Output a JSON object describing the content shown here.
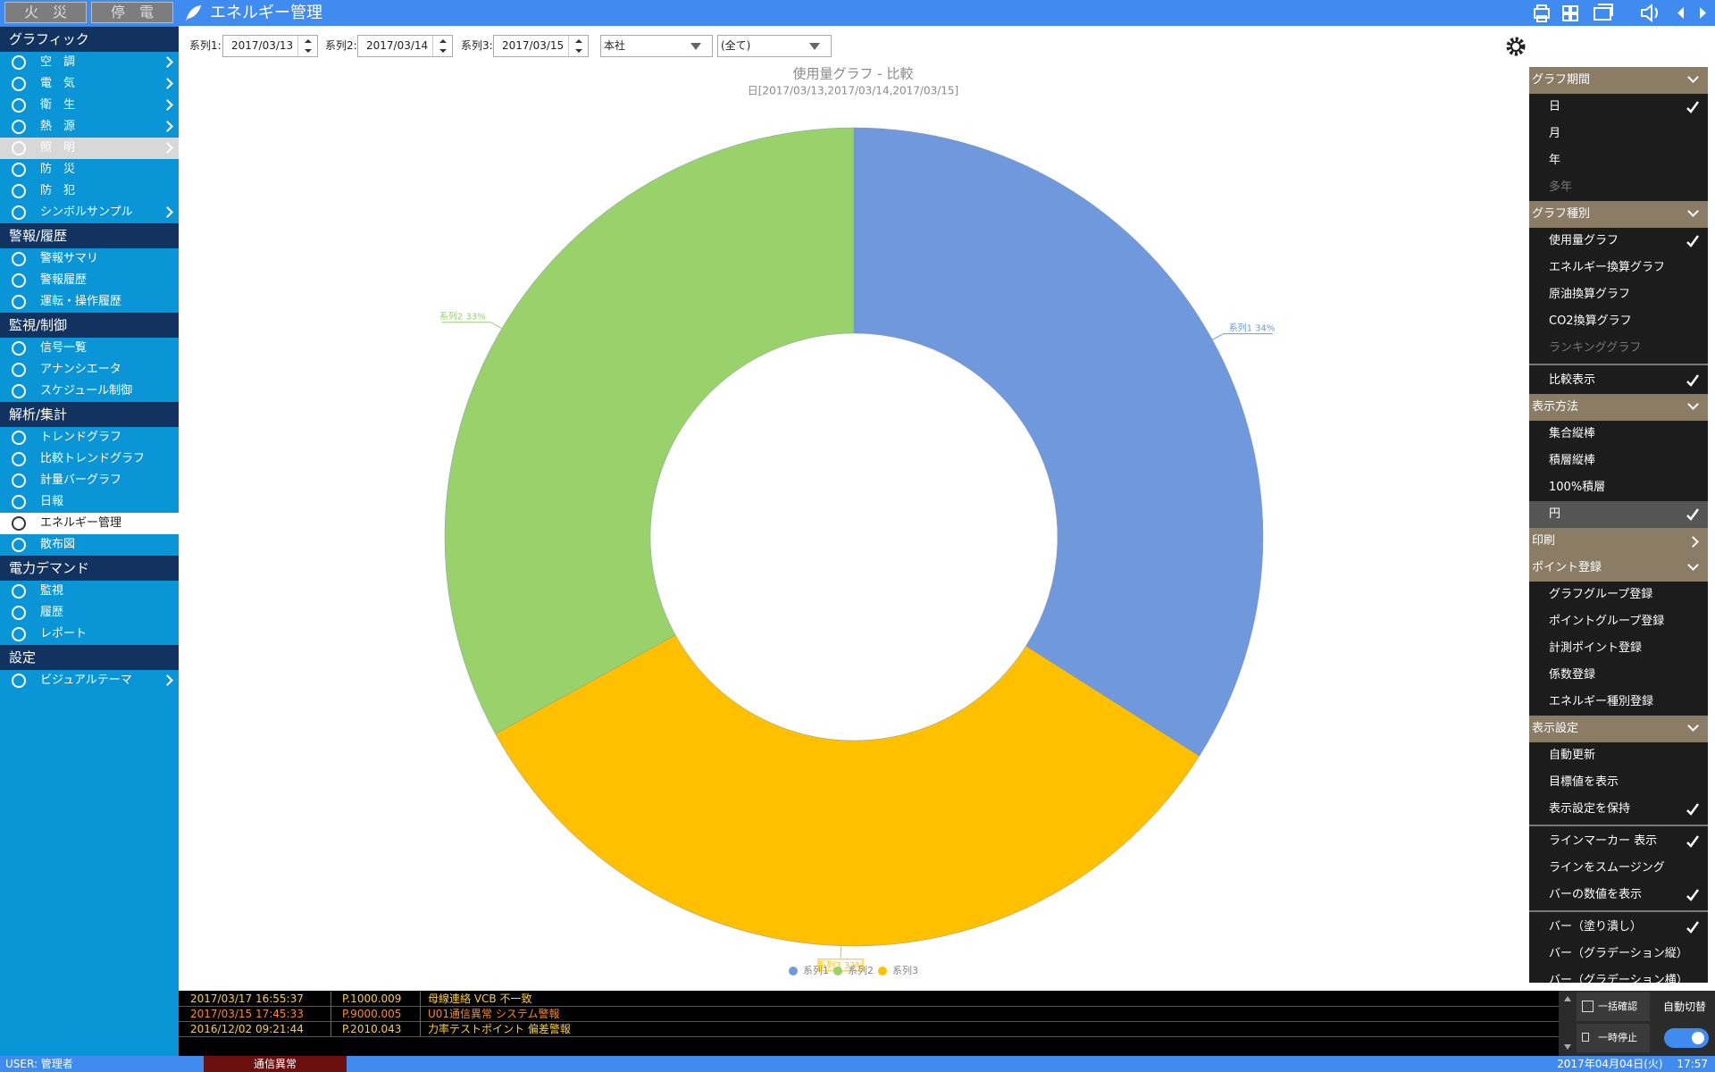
{
  "header": {
    "buttons": [
      "火　災",
      "停　電"
    ],
    "title": "エネルギー管理"
  },
  "sidebar": [
    {
      "title": "グラフィック",
      "items": [
        {
          "label": "空　調",
          "arrow": true
        },
        {
          "label": "電　気",
          "arrow": true
        },
        {
          "label": "衛　生",
          "arrow": true
        },
        {
          "label": "熱　源",
          "arrow": true
        },
        {
          "label": "照　明",
          "arrow": true,
          "highlighted": true
        },
        {
          "label": "防　災"
        },
        {
          "label": "防　犯"
        },
        {
          "label": "シンボルサンプル",
          "arrow": true
        }
      ]
    },
    {
      "title": "警報/履歴",
      "items": [
        {
          "label": "警報サマリ"
        },
        {
          "label": "警報履歴"
        },
        {
          "label": "運転・操作履歴"
        }
      ]
    },
    {
      "title": "監視/制御",
      "items": [
        {
          "label": "信号一覧"
        },
        {
          "label": "アナンシエータ"
        },
        {
          "label": "スケジュール制御"
        }
      ]
    },
    {
      "title": "解析/集計",
      "items": [
        {
          "label": "トレンドグラフ"
        },
        {
          "label": "比較トレンドグラフ"
        },
        {
          "label": "計量バーグラフ"
        },
        {
          "label": "日報"
        },
        {
          "label": "エネルギー管理",
          "selected": true
        },
        {
          "label": "散布図"
        }
      ]
    },
    {
      "title": "電力デマンド",
      "items": [
        {
          "label": "監視"
        },
        {
          "label": "履歴"
        },
        {
          "label": "レポート"
        }
      ]
    },
    {
      "title": "設定",
      "items": [
        {
          "label": "ビジュアルテーマ",
          "arrow": true
        }
      ]
    }
  ],
  "toolbar": {
    "series": [
      {
        "label": "系列1:",
        "date": "2017/03/13"
      },
      {
        "label": "系列2:",
        "date": "2017/03/14"
      },
      {
        "label": "系列3:",
        "date": "2017/03/15"
      }
    ],
    "selects": [
      "本社",
      "(全て)"
    ]
  },
  "chart_data": {
    "type": "pie",
    "title": "使用量グラフ - 比較",
    "subtitle": "日[2017/03/13,2017/03/14,2017/03/15]",
    "categories": [
      "系列1",
      "系列2",
      "系列3"
    ],
    "values": [
      34,
      33,
      33
    ],
    "value_labels": [
      "系列1 34%",
      "系列2 33%",
      "系列3 33%"
    ],
    "colors": [
      "#6f98dd",
      "#99d16b",
      "#ffc000"
    ]
  },
  "settings_panel": [
    {
      "title": "グラフ期間",
      "expanded": true,
      "items": [
        {
          "label": "日",
          "checked": true
        },
        {
          "label": "月"
        },
        {
          "label": "年"
        },
        {
          "label": "多年",
          "disabled": true
        }
      ]
    },
    {
      "title": "グラフ種別",
      "expanded": true,
      "items": [
        {
          "label": "使用量グラフ",
          "checked": true
        },
        {
          "label": "エネルギー換算グラフ"
        },
        {
          "label": "原油換算グラフ"
        },
        {
          "label": "CO2換算グラフ"
        },
        {
          "label": "ランキンググラフ",
          "disabled": true
        },
        {
          "label": "比較表示",
          "checked": true,
          "separator_before": true
        }
      ]
    },
    {
      "title": "表示方法",
      "expanded": true,
      "items": [
        {
          "label": "集合縦棒"
        },
        {
          "label": "積層縦棒"
        },
        {
          "label": "100%積層"
        },
        {
          "label": "円",
          "checked": true,
          "highlighted": true
        }
      ]
    },
    {
      "title": "印刷",
      "expanded": false,
      "items": []
    },
    {
      "title": "ポイント登録",
      "expanded": true,
      "items": [
        {
          "label": "グラフグループ登録"
        },
        {
          "label": "ポイントグループ登録"
        },
        {
          "label": "計測ポイント登録"
        },
        {
          "label": "係数登録"
        },
        {
          "label": "エネルギー種別登録"
        }
      ]
    },
    {
      "title": "表示設定",
      "expanded": true,
      "items": [
        {
          "label": "自動更新"
        },
        {
          "label": "目標値を表示"
        },
        {
          "label": "表示設定を保持",
          "checked": true
        },
        {
          "label": "ラインマーカー 表示",
          "checked": true,
          "separator_before": true
        },
        {
          "label": "ラインをスムージング"
        },
        {
          "label": "バーの数値を表示",
          "checked": true
        },
        {
          "label": "バー（塗り潰し）",
          "checked": true,
          "separator_before": true
        },
        {
          "label": "バー（グラデーション縦）"
        },
        {
          "label": "バー（グラデーション横）"
        }
      ]
    }
  ],
  "alarms": [
    {
      "time": "2017/03/17 16:55:37",
      "point": "P.1000.009",
      "message": "母線連絡 VCB 不一致",
      "color": "#ffd21a"
    },
    {
      "time": "2017/03/15 17:45:33",
      "point": "P.9000.005",
      "message": "U01通信異常 システム警報",
      "color": "#ff8a1c"
    },
    {
      "time": "2016/12/02 09:21:44",
      "point": "P.2010.043",
      "message": "力率テストポイント 偏差警報",
      "color": "#ffd21a"
    }
  ],
  "alarm_buttons": [
    "一括確認",
    "一時停止",
    "自動切替"
  ],
  "status": {
    "user": "USER: 管理者",
    "alert": "通信異常",
    "datetime": "2017年04月04日(火)　 17:57"
  }
}
